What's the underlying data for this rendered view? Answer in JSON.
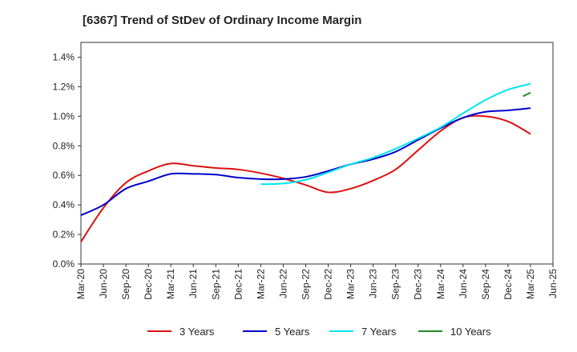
{
  "chart_data": {
    "type": "line",
    "title": "[6367]  Trend of StDev of Ordinary Income Margin",
    "xlabel": "",
    "ylabel": "",
    "x": [
      "Mar-20",
      "Jun-20",
      "Sep-20",
      "Dec-20",
      "Mar-21",
      "Jun-21",
      "Sep-21",
      "Dec-21",
      "Mar-22",
      "Jun-22",
      "Sep-22",
      "Dec-22",
      "Mar-23",
      "Jun-23",
      "Sep-23",
      "Dec-23",
      "Mar-24",
      "Jun-24",
      "Sep-24",
      "Dec-24",
      "Mar-25",
      "Jun-25"
    ],
    "y_ticks": [
      "0.0%",
      "0.2%",
      "0.4%",
      "0.6%",
      "0.8%",
      "1.0%",
      "1.2%",
      "1.4%"
    ],
    "ylim": [
      0,
      1.5
    ],
    "y_unit": "%",
    "grid": true,
    "legend_position": "bottom",
    "series": [
      {
        "name": "3 Years",
        "color": "#dd1111",
        "values": [
          0.15,
          0.38,
          0.55,
          0.63,
          0.68,
          0.665,
          0.65,
          0.64,
          0.615,
          0.58,
          0.535,
          0.485,
          0.51,
          0.565,
          0.64,
          0.77,
          0.9,
          0.99,
          1.0,
          0.965,
          0.88,
          null
        ]
      },
      {
        "name": "5 Years",
        "color": "#0000cc",
        "values": [
          0.33,
          0.4,
          0.51,
          0.56,
          0.61,
          0.61,
          0.605,
          0.585,
          0.575,
          0.575,
          0.59,
          0.63,
          0.675,
          0.71,
          0.76,
          0.84,
          0.92,
          0.99,
          1.03,
          1.04,
          1.055,
          null
        ]
      },
      {
        "name": "7 Years",
        "color": "#00e5ee",
        "values": [
          null,
          null,
          null,
          null,
          null,
          null,
          null,
          null,
          0.54,
          0.545,
          0.57,
          0.62,
          0.675,
          0.72,
          0.78,
          0.85,
          0.925,
          1.02,
          1.11,
          1.18,
          1.22,
          null
        ]
      },
      {
        "name": "10 Years",
        "color": "#228822",
        "values": [
          null,
          null,
          null,
          null,
          null,
          null,
          null,
          null,
          null,
          null,
          null,
          null,
          null,
          null,
          null,
          null,
          null,
          null,
          null,
          null,
          1.16,
          null
        ],
        "partial_segment": {
          "from_x": "Feb-25",
          "from_value": 1.135,
          "to_x": "Mar-25",
          "to_value": 1.16
        }
      }
    ]
  }
}
